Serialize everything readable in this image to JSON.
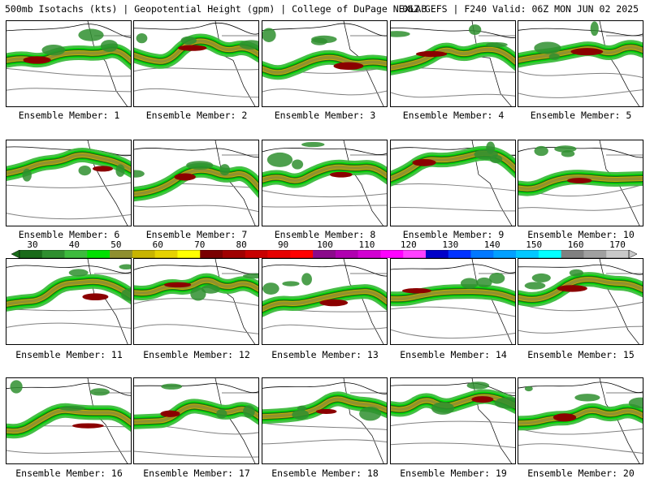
{
  "header": {
    "left": "500mb Isotachs (kts) | Geopotential Height (gpm) | College of DuPage NEXLAB",
    "right": "06Z GEFS | F240 Valid: 06Z MON JUN 02 2025"
  },
  "members": [
    "Ensemble Member: 1",
    "Ensemble Member: 2",
    "Ensemble Member: 3",
    "Ensemble Member: 4",
    "Ensemble Member: 5",
    "Ensemble Member: 6",
    "Ensemble Member: 7",
    "Ensemble Member: 8",
    "Ensemble Member: 9",
    "Ensemble Member: 10",
    "Ensemble Member: 11",
    "Ensemble Member: 12",
    "Ensemble Member: 13",
    "Ensemble Member: 14",
    "Ensemble Member: 15",
    "Ensemble Member: 16",
    "Ensemble Member: 17",
    "Ensemble Member: 18",
    "Ensemble Member: 19",
    "Ensemble Member: 20"
  ],
  "colorbar": {
    "labels": [
      "30",
      "40",
      "50",
      "60",
      "70",
      "80",
      "90",
      "100",
      "110",
      "120",
      "130",
      "140",
      "150",
      "160",
      "170"
    ],
    "colors": [
      "#1a6b1a",
      "#2f8f2f",
      "#3dbb3d",
      "#00e000",
      "#8f8f2f",
      "#c8b400",
      "#e6d200",
      "#ffff00",
      "#7a0000",
      "#a00000",
      "#c80000",
      "#e60000",
      "#ff0000",
      "#8b0a8b",
      "#b000b0",
      "#d200d2",
      "#ff00ff",
      "#ff40ff",
      "#0000c8",
      "#0032ff",
      "#0078ff",
      "#00a0ff",
      "#00c8ff",
      "#00ffff",
      "#808080",
      "#a0a0a0",
      "#c8c8c8"
    ]
  }
}
